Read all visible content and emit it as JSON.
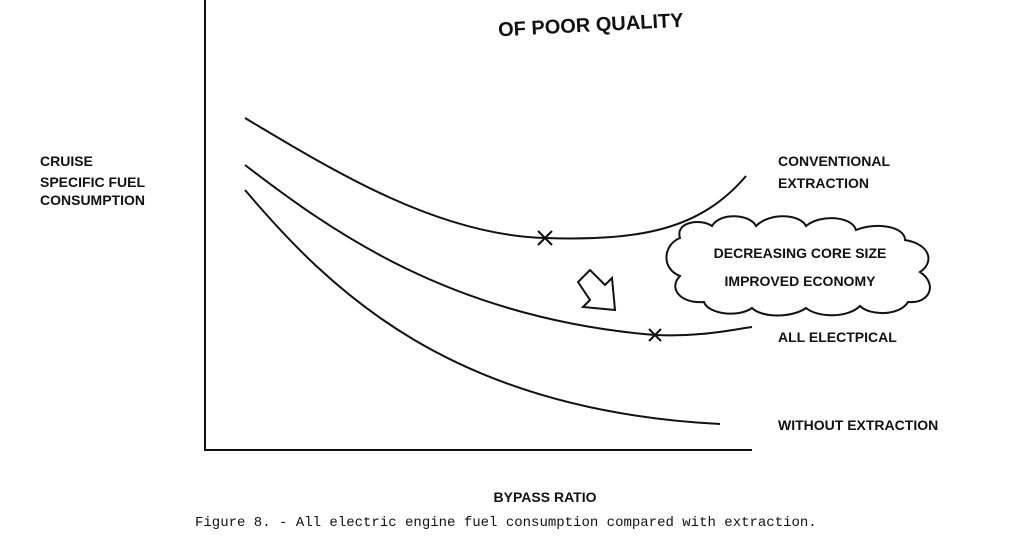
{
  "header": {
    "title": "OF POOR QUALITY"
  },
  "y_axis": {
    "label": [
      "CRUISE",
      "SPECIFIC FUEL",
      "CONSUMPTION"
    ]
  },
  "x_axis": {
    "label": "BYPASS RATIO"
  },
  "curves": [
    {
      "label": [
        "CONVENTIONAL",
        "EXTRACTION"
      ]
    },
    {
      "label": [
        "ALL ELECTPICAL"
      ]
    },
    {
      "label": [
        "WITHOUT EXTRACTION"
      ]
    }
  ],
  "annotation": {
    "lines": [
      "DECREASING CORE SIZE",
      "IMPROVED ECONOMY"
    ]
  },
  "caption": "Figure 8. - All electric engine fuel consumption compared with extraction."
}
